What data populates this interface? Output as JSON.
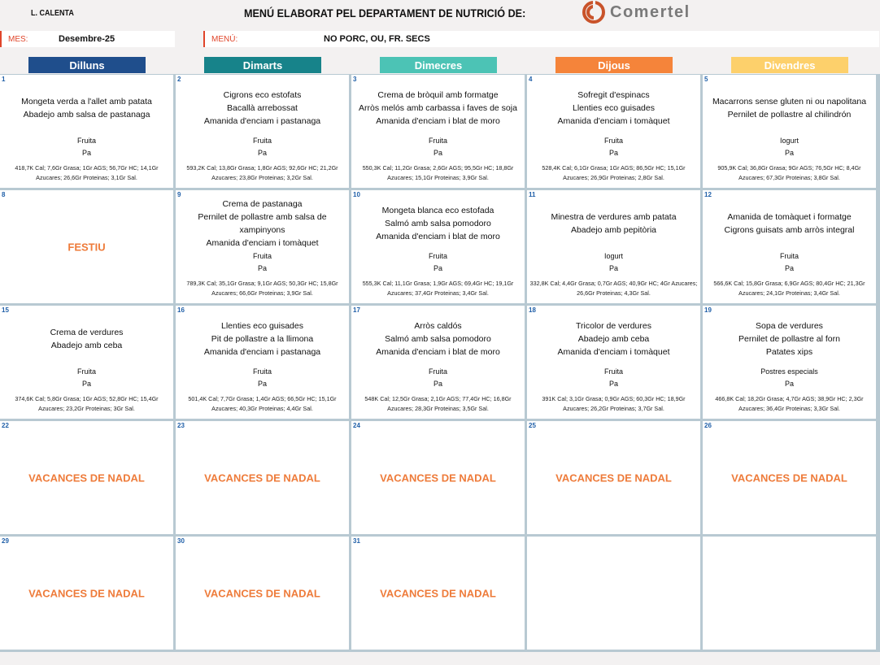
{
  "header": {
    "left_title": "L. CALENTA",
    "title": "MENÚ ELABORAT PEL DEPARTAMENT DE NUTRICIÓ DE:",
    "logo_text": "Comertel",
    "logo_color": "#c9532a",
    "month_label": "MES:",
    "month_value": "Desembre-25",
    "menu_label": "MENÚ:",
    "menu_value": "NO PORC, OU, FR. SECS"
  },
  "weekdays": [
    {
      "label": "Dilluns",
      "color": "#1f4e8c"
    },
    {
      "label": "Dimarts",
      "color": "#17838a"
    },
    {
      "label": "Dimecres",
      "color": "#4cc3b5"
    },
    {
      "label": "Dijous",
      "color": "#f5843a"
    },
    {
      "label": "Divendres",
      "color": "#fdd06b"
    }
  ],
  "accent_orange": "#ee7b3a",
  "days": [
    {
      "num": "1",
      "dishes": [
        "Mongeta verda a l'allet amb patata",
        "Abadejo amb salsa de pastanaga"
      ],
      "desserts": [
        "Fruita",
        "Pa"
      ],
      "nutrition": "418,7K Cal; 7,6Gr Grasa; 1Gr AGS; 56,7Gr HC; 14,1Gr Azucares; 26,6Gr Proteinas; 3,1Gr Sal."
    },
    {
      "num": "2",
      "dishes": [
        "Cigrons eco estofats",
        "Bacallà arrebossat",
        "Amanida d'enciam i pastanaga"
      ],
      "desserts": [
        "Fruita",
        "Pa"
      ],
      "nutrition": "593,2K Cal; 13,8Gr Grasa; 1,8Gr AGS; 92,6Gr HC; 21,2Gr Azucares; 23,8Gr Proteinas; 3,2Gr Sal."
    },
    {
      "num": "3",
      "dishes": [
        "Crema de bròquil amb formatge",
        "Arròs melós amb carbassa i faves de soja",
        "Amanida d'enciam i blat de moro"
      ],
      "desserts": [
        "Fruita",
        "Pa"
      ],
      "nutrition": "550,3K Cal; 11,2Gr Grasa; 2,6Gr AGS; 95,5Gr HC; 18,8Gr Azucares; 15,1Gr Proteinas; 3,9Gr Sal."
    },
    {
      "num": "4",
      "dishes": [
        "Sofregit d'espinacs",
        "Llenties eco guisades",
        "Amanida d'enciam i tomàquet"
      ],
      "desserts": [
        "Fruita",
        "Pa"
      ],
      "nutrition": "528,4K Cal; 6,1Gr Grasa; 1Gr AGS; 86,5Gr HC; 15,1Gr Azucares; 26,9Gr Proteinas; 2,8Gr Sal."
    },
    {
      "num": "5",
      "dishes": [
        "Macarrons sense gluten ni ou napolitana",
        "Pernilet de pollastre al chilindrón"
      ],
      "desserts": [
        "Iogurt",
        "Pa"
      ],
      "nutrition": "905,9K Cal; 36,8Gr Grasa; 9Gr AGS; 76,5Gr HC; 8,4Gr Azucares; 67,3Gr Proteinas; 3,8Gr Sal."
    },
    {
      "num": "8",
      "special": "FESTIU"
    },
    {
      "num": "9",
      "dishes": [
        "Crema de pastanaga",
        "Pernilet de pollastre amb salsa de xampinyons",
        "Amanida d'enciam i tomàquet"
      ],
      "desserts": [
        "Fruita",
        "Pa"
      ],
      "nutrition": "789,3K Cal; 35,1Gr Grasa; 9,1Gr AGS; 50,3Gr HC; 15,8Gr Azucares; 66,6Gr Proteinas; 3,9Gr Sal."
    },
    {
      "num": "10",
      "dishes": [
        "Mongeta blanca eco estofada",
        "Salmó amb salsa pomodoro",
        "Amanida d'enciam i blat de moro"
      ],
      "desserts": [
        "Fruita",
        "Pa"
      ],
      "nutrition": "555,3K Cal; 11,1Gr Grasa; 1,9Gr AGS; 69,4Gr HC; 19,1Gr Azucares; 37,4Gr Proteinas; 3,4Gr Sal."
    },
    {
      "num": "11",
      "dishes": [
        "Minestra de verdures amb patata",
        "Abadejo amb pepitòria"
      ],
      "desserts": [
        "Iogurt",
        "Pa"
      ],
      "nutrition": "332,8K Cal; 4,4Gr Grasa; 0,7Gr AGS; 40,9Gr HC; 4Gr Azucares; 26,6Gr Proteinas; 4,3Gr Sal."
    },
    {
      "num": "12",
      "dishes": [
        "Amanida de tomàquet i formatge",
        "Cigrons guisats amb arròs integral"
      ],
      "desserts": [
        "Fruita",
        "Pa"
      ],
      "nutrition": "566,6K Cal; 15,8Gr Grasa; 6,9Gr AGS; 80,4Gr HC; 21,3Gr Azucares; 24,1Gr Proteinas; 3,4Gr Sal."
    },
    {
      "num": "15",
      "dishes": [
        "Crema de verdures",
        "Abadejo amb ceba"
      ],
      "desserts": [
        "Fruita",
        "Pa"
      ],
      "nutrition": "374,6K Cal; 5,8Gr Grasa; 1Gr AGS; 52,8Gr HC; 15,4Gr Azucares; 23,2Gr Proteinas; 3Gr Sal."
    },
    {
      "num": "16",
      "dishes": [
        "Llenties eco guisades",
        "Pit de pollastre a la llimona",
        "Amanida d'enciam i pastanaga"
      ],
      "desserts": [
        "Fruita",
        "Pa"
      ],
      "nutrition": "501,4K Cal; 7,7Gr Grasa; 1,4Gr AGS; 66,5Gr HC; 15,1Gr Azucares; 40,3Gr Proteinas; 4,4Gr Sal."
    },
    {
      "num": "17",
      "dishes": [
        "Arròs caldós",
        "Salmó amb salsa pomodoro",
        "Amanida d'enciam i blat de moro"
      ],
      "desserts": [
        "Fruita",
        "Pa"
      ],
      "nutrition": "548K Cal; 12,5Gr Grasa; 2,1Gr AGS; 77,4Gr HC; 16,8Gr Azucares; 28,3Gr Proteinas; 3,5Gr Sal."
    },
    {
      "num": "18",
      "dishes": [
        "Tricolor de verdures",
        "Abadejo amb ceba",
        "Amanida d'enciam i tomàquet"
      ],
      "desserts": [
        "Fruita",
        "Pa"
      ],
      "nutrition": "391K Cal; 3,1Gr Grasa; 0,9Gr AGS; 60,3Gr HC; 18,9Gr Azucares; 26,2Gr Proteinas; 3,7Gr Sal."
    },
    {
      "num": "19",
      "dishes": [
        "Sopa de verdures",
        "Pernilet de pollastre al forn",
        "Patates xips"
      ],
      "desserts": [
        "Postres especials",
        "Pa"
      ],
      "nutrition": "466,8K Cal; 18,2Gr Grasa; 4,7Gr AGS; 38,9Gr HC; 2,3Gr Azucares; 36,4Gr Proteinas; 3,3Gr Sal."
    },
    {
      "num": "22",
      "special": "VACANCES DE NADAL"
    },
    {
      "num": "23",
      "special": "VACANCES DE NADAL"
    },
    {
      "num": "24",
      "special": "VACANCES DE NADAL"
    },
    {
      "num": "25",
      "special": "VACANCES DE NADAL"
    },
    {
      "num": "26",
      "special": "VACANCES DE NADAL"
    },
    {
      "num": "29",
      "special": "VACANCES DE NADAL"
    },
    {
      "num": "30",
      "special": "VACANCES DE NADAL"
    },
    {
      "num": "31",
      "special": "VACANCES DE NADAL"
    },
    {
      "num": ""
    },
    {
      "num": ""
    }
  ]
}
